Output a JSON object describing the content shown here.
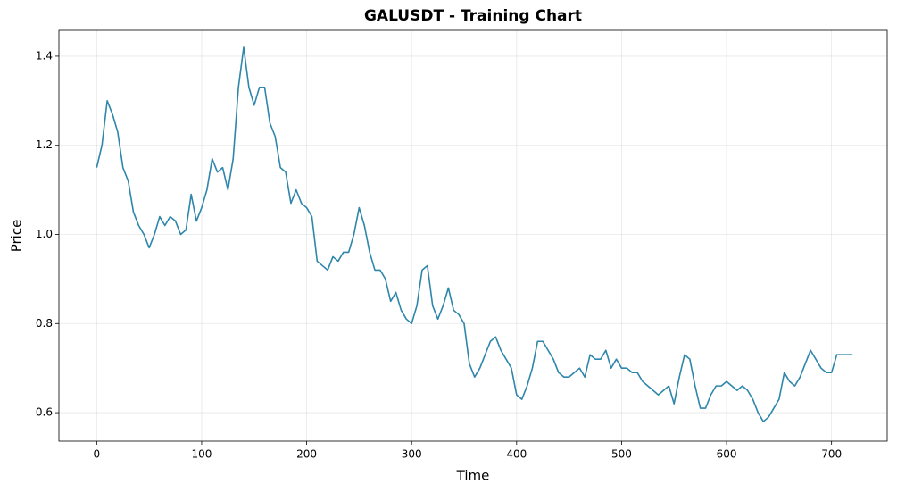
{
  "chart_data": {
    "type": "line",
    "title": "GALUSDT - Training Chart",
    "x_label": "Time",
    "y_label": "Price",
    "color": "#2e86ab",
    "grid": true,
    "xlim": [
      -36,
      753
    ],
    "ylim": [
      0.536,
      1.458
    ],
    "xticks": [
      0,
      100,
      200,
      300,
      400,
      500,
      600,
      700
    ],
    "yticks": [
      0.6,
      0.8,
      {
        "value": 1,
        "label": "1.0"
      },
      1.2,
      1.4
    ],
    "x": [
      0,
      5,
      10,
      15,
      20,
      25,
      30,
      35,
      40,
      45,
      50,
      55,
      60,
      65,
      70,
      75,
      80,
      85,
      90,
      95,
      100,
      105,
      110,
      115,
      120,
      125,
      130,
      135,
      140,
      145,
      150,
      155,
      160,
      165,
      170,
      175,
      180,
      185,
      190,
      195,
      200,
      205,
      210,
      215,
      220,
      225,
      230,
      235,
      240,
      245,
      250,
      255,
      260,
      265,
      270,
      275,
      280,
      285,
      290,
      295,
      300,
      305,
      310,
      315,
      320,
      325,
      330,
      335,
      340,
      345,
      350,
      355,
      360,
      365,
      370,
      375,
      380,
      385,
      390,
      395,
      400,
      405,
      410,
      415,
      420,
      425,
      430,
      435,
      440,
      445,
      450,
      455,
      460,
      465,
      470,
      475,
      480,
      485,
      490,
      495,
      500,
      505,
      510,
      515,
      520,
      525,
      530,
      535,
      540,
      545,
      550,
      555,
      560,
      565,
      570,
      575,
      580,
      585,
      590,
      595,
      600,
      605,
      610,
      615,
      620,
      625,
      630,
      635,
      640,
      645,
      650,
      655,
      660,
      665,
      670,
      675,
      680,
      685,
      690,
      695,
      700,
      705,
      710,
      715,
      720
    ],
    "values": [
      1.15,
      1.2,
      1.3,
      1.27,
      1.23,
      1.15,
      1.12,
      1.05,
      1.02,
      1.0,
      0.97,
      1.0,
      1.04,
      1.02,
      1.04,
      1.03,
      1.0,
      1.01,
      1.09,
      1.03,
      1.06,
      1.1,
      1.17,
      1.14,
      1.15,
      1.1,
      1.17,
      1.33,
      1.42,
      1.33,
      1.29,
      1.33,
      1.33,
      1.25,
      1.22,
      1.15,
      1.14,
      1.07,
      1.1,
      1.07,
      1.06,
      1.04,
      0.94,
      0.93,
      0.92,
      0.95,
      0.94,
      0.96,
      0.96,
      1.0,
      1.06,
      1.02,
      0.96,
      0.92,
      0.92,
      0.9,
      0.85,
      0.87,
      0.83,
      0.81,
      0.8,
      0.84,
      0.92,
      0.93,
      0.84,
      0.81,
      0.84,
      0.88,
      0.83,
      0.82,
      0.8,
      0.71,
      0.68,
      0.7,
      0.73,
      0.76,
      0.77,
      0.74,
      0.72,
      0.7,
      0.64,
      0.63,
      0.66,
      0.7,
      0.76,
      0.76,
      0.74,
      0.72,
      0.69,
      0.68,
      0.68,
      0.69,
      0.7,
      0.68,
      0.73,
      0.72,
      0.72,
      0.74,
      0.7,
      0.72,
      0.7,
      0.7,
      0.69,
      0.69,
      0.67,
      0.66,
      0.65,
      0.64,
      0.65,
      0.66,
      0.62,
      0.68,
      0.73,
      0.72,
      0.66,
      0.61,
      0.61,
      0.64,
      0.66,
      0.66,
      0.67,
      0.66,
      0.65,
      0.66,
      0.65,
      0.63,
      0.6,
      0.58,
      0.59,
      0.61,
      0.63,
      0.69,
      0.67,
      0.66,
      0.68,
      0.71,
      0.74,
      0.72,
      0.7,
      0.69,
      0.69,
      0.73,
      0.73,
      0.73,
      0.73
    ]
  }
}
